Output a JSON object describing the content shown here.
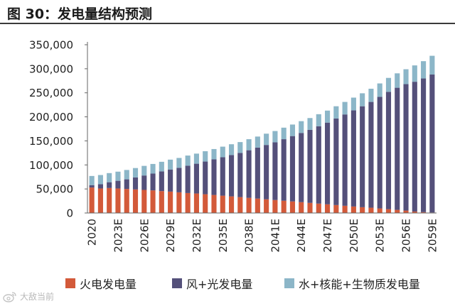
{
  "header": {
    "title": "图 30：发电量结构预测"
  },
  "colors": {
    "fossil": "#d35a3a",
    "wind_solar": "#54507a",
    "other": "#8cb6c8",
    "axis": "#666666",
    "text": "#222222"
  },
  "watermark": {
    "text": "大敌当前",
    "icon": "weibo-logo-icon"
  },
  "chart_data": {
    "type": "bar",
    "stacked": true,
    "title": "",
    "xlabel": "",
    "ylabel": "",
    "ylim": [
      0,
      350000
    ],
    "yticks": [
      0,
      50000,
      100000,
      150000,
      200000,
      250000,
      300000,
      350000
    ],
    "ytick_labels": [
      "0",
      "50,000",
      "100,000",
      "150,000",
      "200,000",
      "250,000",
      "300,000",
      "350,000"
    ],
    "xtick_labels": [
      "2020",
      "2023E",
      "2026E",
      "2029E",
      "2032E",
      "2035E",
      "2038E",
      "2041E",
      "2044E",
      "2047E",
      "2050E",
      "2053E",
      "2056E",
      "2059E"
    ],
    "legend_position": "bottom",
    "categories": [
      "2020",
      "2021E",
      "2022E",
      "2023E",
      "2024E",
      "2025E",
      "2026E",
      "2027E",
      "2028E",
      "2029E",
      "2030E",
      "2031E",
      "2032E",
      "2033E",
      "2034E",
      "2035E",
      "2036E",
      "2037E",
      "2038E",
      "2039E",
      "2040E",
      "2041E",
      "2042E",
      "2043E",
      "2044E",
      "2045E",
      "2046E",
      "2047E",
      "2048E",
      "2049E",
      "2050E",
      "2051E",
      "2052E",
      "2053E",
      "2054E",
      "2055E",
      "2056E",
      "2057E",
      "2058E",
      "2059E"
    ],
    "series": [
      {
        "name": "火电发电量",
        "key": "fossil",
        "values": [
          53000,
          51000,
          52000,
          51000,
          50000,
          49000,
          48000,
          47000,
          45500,
          44500,
          43000,
          41500,
          40500,
          39000,
          37500,
          36000,
          34500,
          33000,
          31500,
          30000,
          28500,
          27000,
          25500,
          24000,
          22500,
          21000,
          19500,
          18000,
          16500,
          15000,
          13500,
          12000,
          11000,
          9500,
          8000,
          6500,
          5000,
          3000,
          1800,
          1000
        ]
      },
      {
        "name": "风+光发电量",
        "key": "wind_solar",
        "values": [
          5000,
          9000,
          12000,
          16000,
          20000,
          25000,
          30000,
          35000,
          41000,
          46000,
          51000,
          57000,
          62000,
          68000,
          74000,
          80000,
          86000,
          92000,
          99000,
          106000,
          113000,
          120000,
          128000,
          136000,
          144000,
          152000,
          161000,
          170000,
          180000,
          190000,
          200000,
          210000,
          220000,
          232000,
          244000,
          254000,
          263000,
          270000,
          278000,
          287000
        ]
      },
      {
        "name": "水+核能+生物质发电量",
        "key": "other",
        "values": [
          19000,
          19000,
          19000,
          19000,
          19500,
          19500,
          20000,
          20000,
          20000,
          20500,
          20500,
          21000,
          21000,
          21500,
          21500,
          22000,
          22500,
          22500,
          23000,
          23000,
          23500,
          23500,
          24000,
          24000,
          24500,
          24500,
          25000,
          25000,
          25500,
          26000,
          26500,
          27000,
          27500,
          28000,
          29000,
          30000,
          31000,
          34000,
          36000,
          39000
        ]
      }
    ]
  }
}
